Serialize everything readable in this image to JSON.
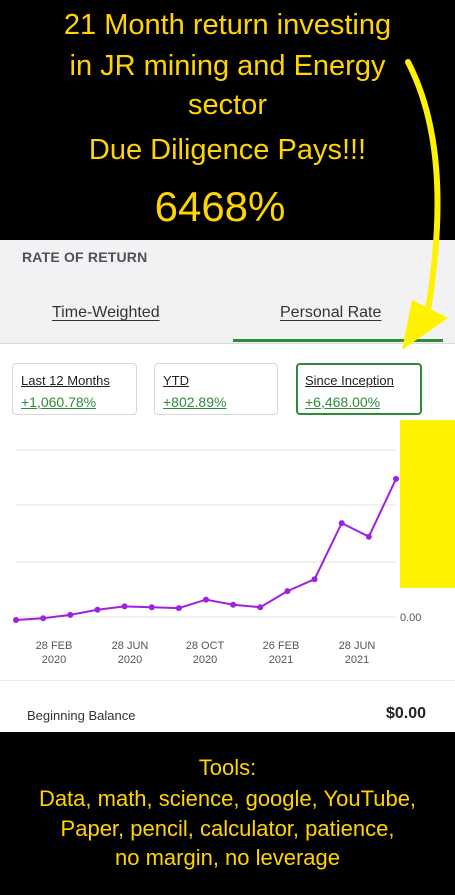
{
  "caption_top": {
    "line1": "21 Month return investing",
    "line2": "in JR mining and Energy",
    "line3": "sector",
    "line4": "Due Diligence Pays!!!",
    "headline": "6468%"
  },
  "section": {
    "title": "RATE OF RETURN"
  },
  "tabs": [
    {
      "label": "Time-Weighted",
      "active": false
    },
    {
      "label": "Personal Rate",
      "active": true
    }
  ],
  "cards": [
    {
      "label": "Last 12 Months",
      "value": "+1,060.78%",
      "active": false
    },
    {
      "label": "YTD",
      "value": "+802.89%",
      "active": false
    },
    {
      "label": "Since Inception",
      "value": "+6,468.00%",
      "active": true
    }
  ],
  "chart_data": {
    "type": "line",
    "title": "",
    "xlabel": "",
    "ylabel": "",
    "x_ticks": [
      {
        "line1": "28 FEB",
        "line2": "2020"
      },
      {
        "line1": "28 JUN",
        "line2": "2020"
      },
      {
        "line1": "28 OCT",
        "line2": "2020"
      },
      {
        "line1": "26 FEB",
        "line2": "2021"
      },
      {
        "line1": "28 JUN",
        "line2": "2021"
      }
    ],
    "y_tick_label": "0.00",
    "ylim": [
      0,
      100
    ],
    "series": [
      {
        "name": "Rate of return",
        "color": "#a020e0",
        "values": [
          0,
          1,
          3,
          6,
          8,
          7.5,
          7,
          12,
          9,
          7.5,
          17,
          24,
          57,
          49,
          83
        ]
      }
    ],
    "grid": true
  },
  "balance": {
    "label": "Beginning Balance",
    "value": "$0.00"
  },
  "caption_bottom": {
    "line1": "Tools:",
    "line2": "Data, math, science, google, YouTube,",
    "line3": "Paper, pencil, calculator, patience,",
    "line4": "no margin, no leverage"
  },
  "colors": {
    "caption": "#ffd400",
    "accent_green": "#2e8b3a",
    "line_purple": "#a020e0",
    "highlight_yellow": "#fff200"
  }
}
